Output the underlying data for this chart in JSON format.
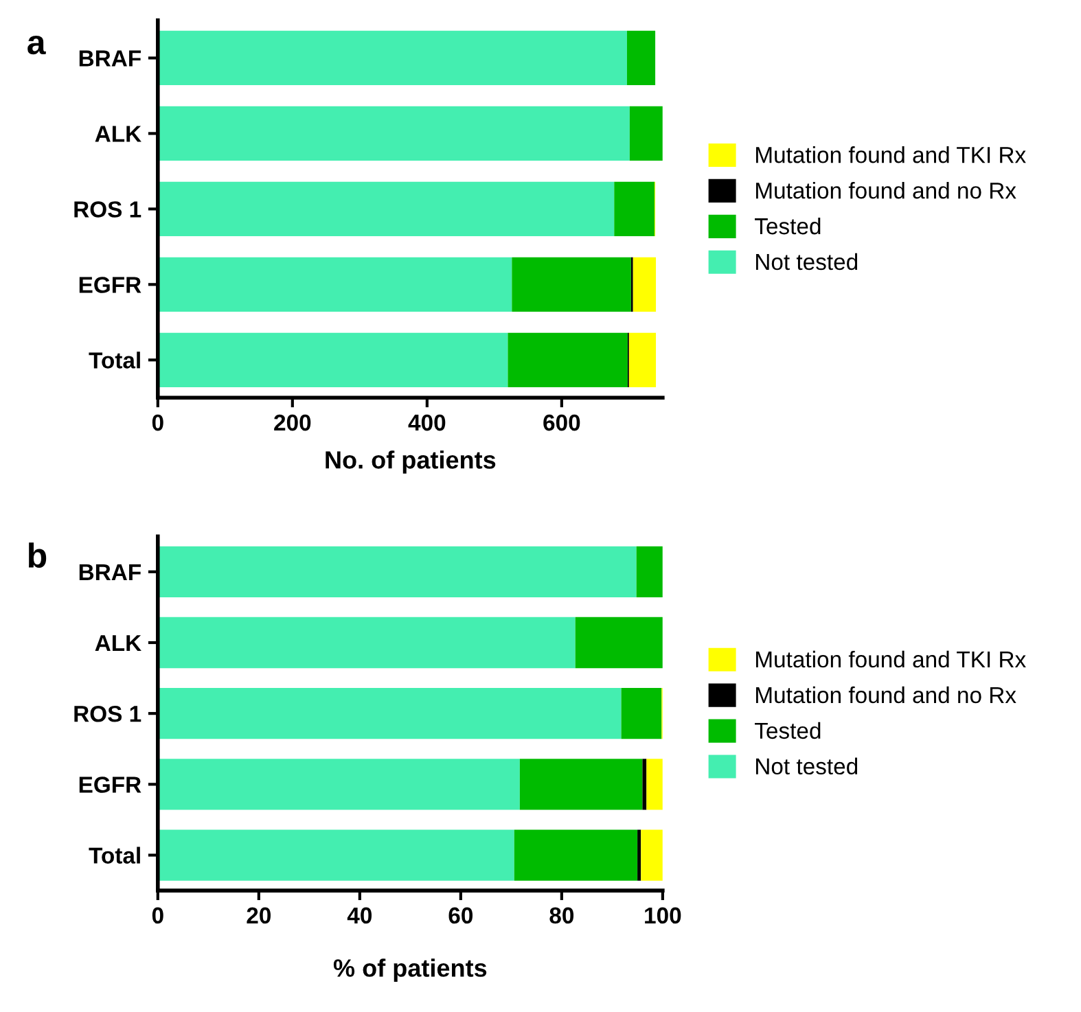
{
  "chart_data": [
    {
      "type": "bar",
      "title": "a",
      "orientation": "horizontal",
      "stacked": true,
      "categories": [
        "BRAF",
        "ALK",
        "ROS 1",
        "EGFR",
        "Total"
      ],
      "xlabel": "No. of patients",
      "xlim": [
        0,
        750
      ],
      "xticks": [
        0,
        200,
        400,
        600
      ],
      "legend": "right",
      "grid": false,
      "series": [
        {
          "name": "Not tested",
          "color": "#44eeb0",
          "values": [
            697,
            701,
            678,
            526,
            520
          ]
        },
        {
          "name": "Tested",
          "color": "#00bb00",
          "values": [
            42,
            49,
            60,
            177,
            178
          ]
        },
        {
          "name": "Mutation found and no Rx",
          "color": "#000000",
          "values": [
            0,
            0,
            0,
            3,
            2
          ]
        },
        {
          "name": "Mutation found and TKI Rx",
          "color": "#ffff00",
          "values": [
            0,
            0,
            1,
            34,
            40
          ]
        }
      ]
    },
    {
      "type": "bar",
      "title": "b",
      "orientation": "horizontal",
      "stacked": true,
      "categories": [
        "BRAF",
        "ALK",
        "ROS 1",
        "EGFR",
        "Total"
      ],
      "xlabel": "% of patients",
      "xlim": [
        0,
        100
      ],
      "xticks": [
        0,
        20,
        40,
        60,
        80,
        100
      ],
      "legend": "right",
      "grid": false,
      "series": [
        {
          "name": "Not tested",
          "color": "#44eeb0",
          "values": [
            94.8,
            82.7,
            91.8,
            71.7,
            70.6
          ]
        },
        {
          "name": "Tested",
          "color": "#00bb00",
          "values": [
            5.2,
            17.3,
            8,
            24.3,
            24.4
          ]
        },
        {
          "name": "Mutation found and no Rx",
          "color": "#000000",
          "values": [
            0,
            0,
            0,
            0.8,
            0.7
          ]
        },
        {
          "name": "Mutation found and TKI Rx",
          "color": "#ffff00",
          "values": [
            0,
            0,
            0.2,
            3.2,
            4.3
          ]
        }
      ]
    }
  ]
}
